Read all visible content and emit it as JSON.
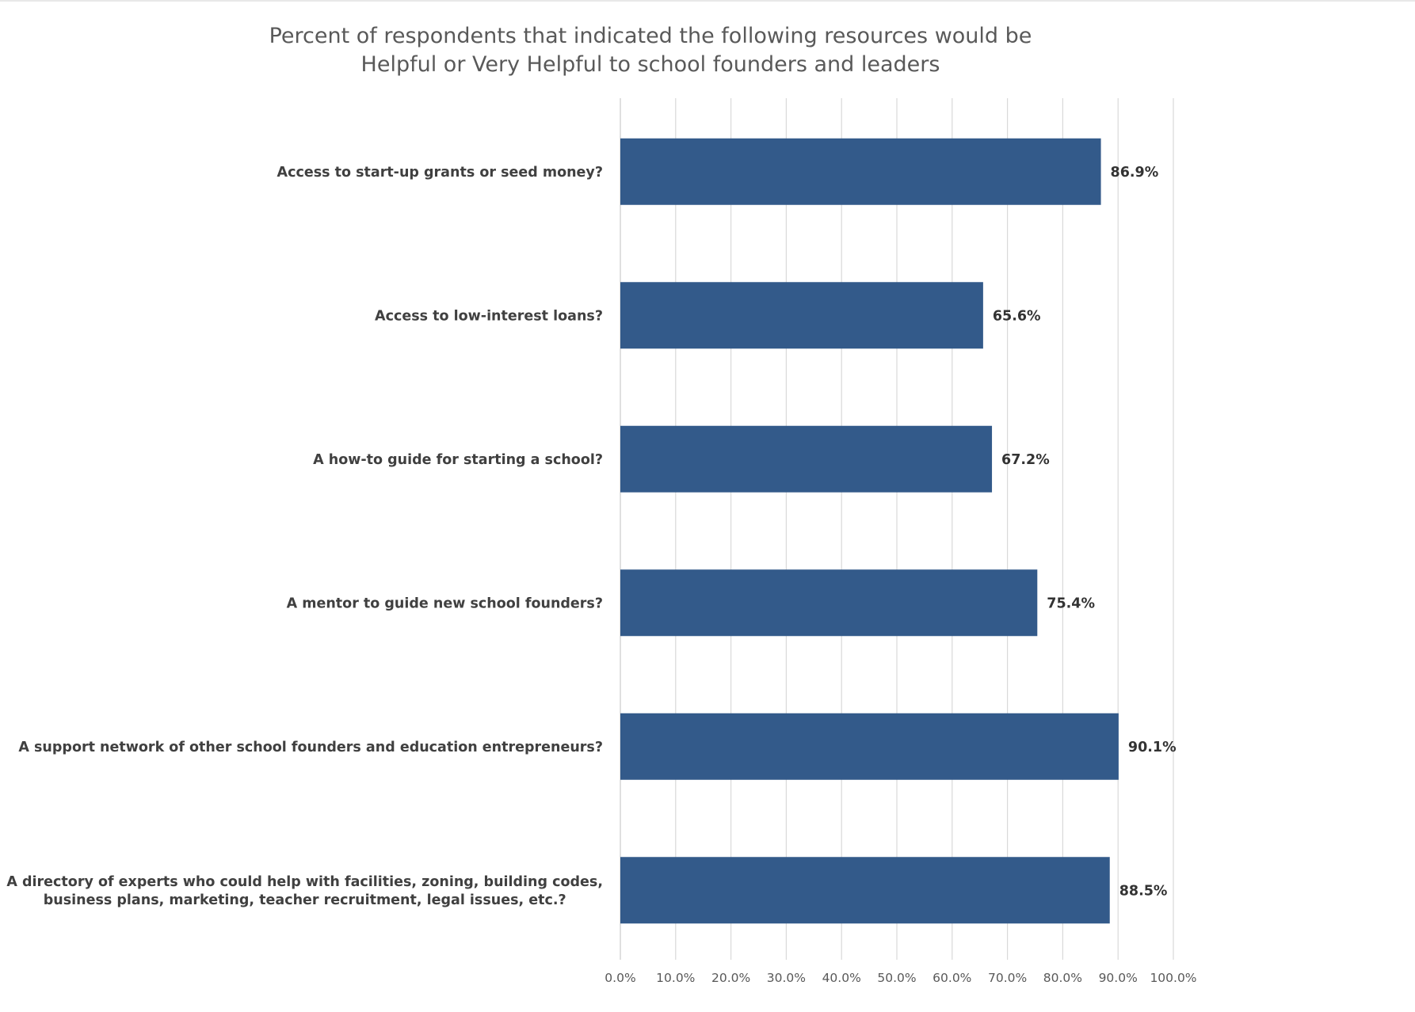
{
  "chart_data": {
    "type": "bar",
    "orientation": "horizontal",
    "title_lines": [
      "Percent of respondents that indicated the following resources would be",
      "Helpful or Very Helpful to school founders and leaders"
    ],
    "categories": [
      [
        "Access to start-up grants or seed money?"
      ],
      [
        "Access to low-interest loans?"
      ],
      [
        "A how-to guide for starting a school?"
      ],
      [
        "A mentor to guide new school founders?"
      ],
      [
        "A support network of other school founders and education entrepreneurs?"
      ],
      [
        "A directory of experts who could help with facilities, zoning, building codes,",
        "business plans, marketing, teacher recruitment, legal issues, etc.?"
      ]
    ],
    "values": [
      86.9,
      65.6,
      67.2,
      75.4,
      90.1,
      88.5
    ],
    "value_labels": [
      "86.9%",
      "65.6%",
      "67.2%",
      "75.4%",
      "90.1%",
      "88.5%"
    ],
    "xlim": [
      0,
      100
    ],
    "x_ticks": [
      0,
      10,
      20,
      30,
      40,
      50,
      60,
      70,
      80,
      90,
      100
    ],
    "x_tick_labels": [
      "0.0%",
      "10.0%",
      "20.0%",
      "30.0%",
      "40.0%",
      "50.0%",
      "60.0%",
      "70.0%",
      "80.0%",
      "90.0%",
      "100.0%"
    ],
    "grid": true,
    "legend": "none",
    "bar_color": "#335A8A",
    "grid_color": "#D9D9D9"
  }
}
